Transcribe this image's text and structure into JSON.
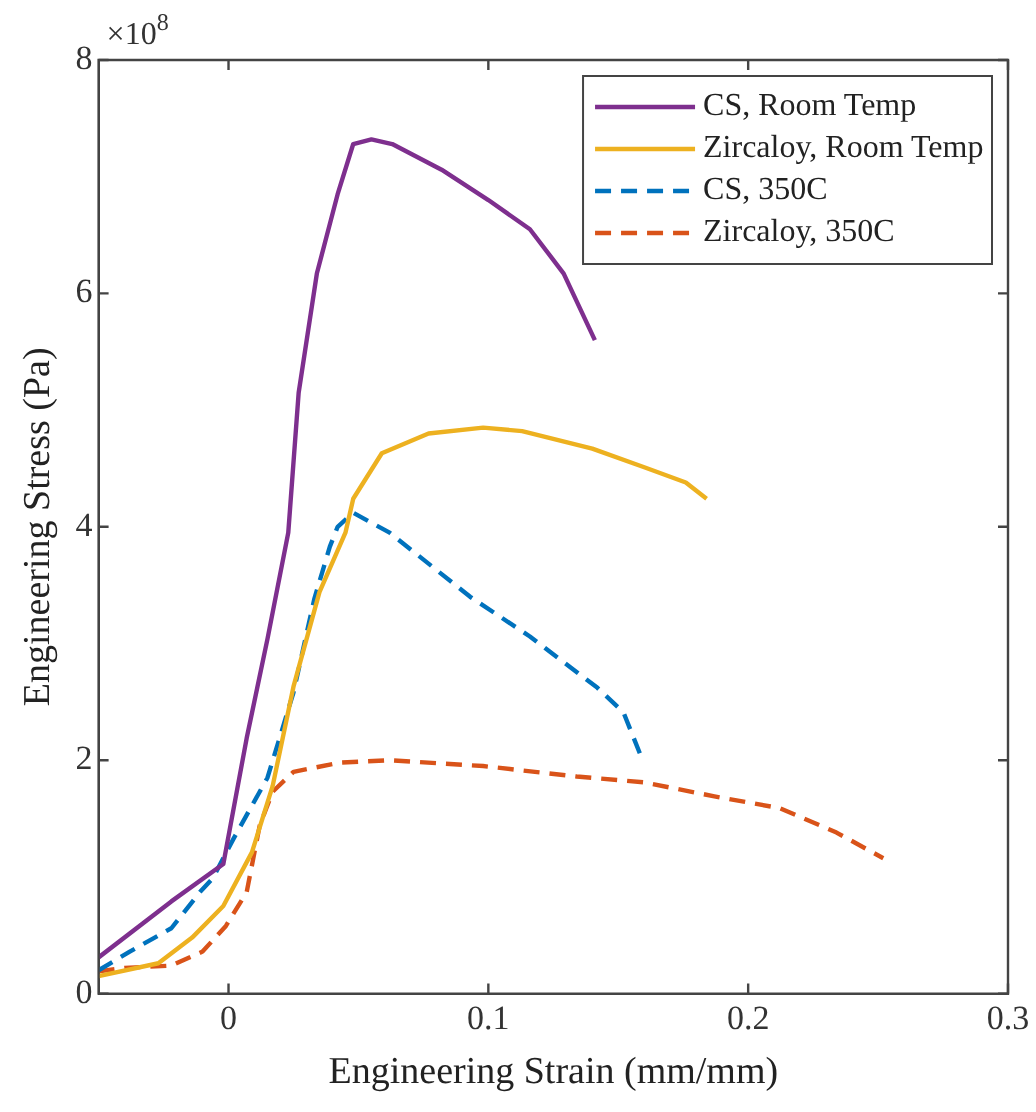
{
  "chart_data": {
    "type": "line",
    "xlabel": "Engineering Strain (mm/mm)",
    "ylabel": "Engineering Stress (Pa)",
    "annotations": [
      "×10$^{8}$"
    ],
    "xlim": [
      -0.05,
      0.3
    ],
    "xticks": [
      0,
      0.1,
      0.2,
      0.3
    ],
    "ylim": [
      0,
      8
    ],
    "yticks": [
      0,
      2,
      4,
      6,
      8
    ],
    "grid": false,
    "legend": "top right",
    "marker": "none",
    "series": [
      {
        "name": "CS, Room Temp",
        "color": "#7e2f8e",
        "line_style": "solid",
        "x": [
          -0.05,
          -0.022,
          -0.002,
          0.007,
          0.015,
          0.023,
          0.027,
          0.034,
          0.042,
          0.048,
          0.055,
          0.063,
          0.082,
          0.1,
          0.116,
          0.129,
          0.141
        ],
        "values": [
          0.31,
          0.79,
          1.11,
          2.19,
          3.04,
          3.95,
          5.15,
          6.17,
          6.85,
          7.28,
          7.32,
          7.28,
          7.06,
          6.8,
          6.55,
          6.17,
          5.6
        ]
      },
      {
        "name": "Zircaloy, Room Temp",
        "color": "#edb120",
        "line_style": "solid",
        "x": [
          -0.05,
          -0.027,
          -0.014,
          -0.002,
          0.009,
          0.017,
          0.025,
          0.035,
          0.045,
          0.048,
          0.059,
          0.077,
          0.098,
          0.113,
          0.14,
          0.16,
          0.176,
          0.184
        ],
        "values": [
          0.15,
          0.26,
          0.48,
          0.75,
          1.21,
          1.78,
          2.63,
          3.44,
          3.95,
          4.24,
          4.63,
          4.8,
          4.85,
          4.82,
          4.67,
          4.51,
          4.38,
          4.24
        ]
      },
      {
        "name": "CS, 350C",
        "color": "#0072bd",
        "line_style": "dashed",
        "x": [
          -0.05,
          -0.038,
          -0.022,
          -0.011,
          -0.006,
          0.002,
          0.015,
          0.025,
          0.033,
          0.039,
          0.042,
          0.048,
          0.062,
          0.093,
          0.116,
          0.142,
          0.152,
          0.159
        ],
        "values": [
          0.2,
          0.36,
          0.56,
          0.87,
          0.99,
          1.33,
          1.85,
          2.58,
          3.38,
          3.83,
          4.0,
          4.12,
          3.95,
          3.4,
          3.06,
          2.62,
          2.41,
          2.02
        ]
      },
      {
        "name": "Zircaloy, 350C",
        "color": "#d95319",
        "line_style": "dashed",
        "x": [
          -0.05,
          -0.04,
          -0.022,
          -0.01,
          -0.001,
          0.007,
          0.012,
          0.017,
          0.025,
          0.043,
          0.062,
          0.098,
          0.134,
          0.16,
          0.187,
          0.212,
          0.234,
          0.252
        ],
        "values": [
          0.19,
          0.22,
          0.24,
          0.36,
          0.58,
          0.87,
          1.44,
          1.73,
          1.9,
          1.98,
          2.0,
          1.95,
          1.86,
          1.81,
          1.69,
          1.59,
          1.38,
          1.16
        ]
      }
    ]
  }
}
